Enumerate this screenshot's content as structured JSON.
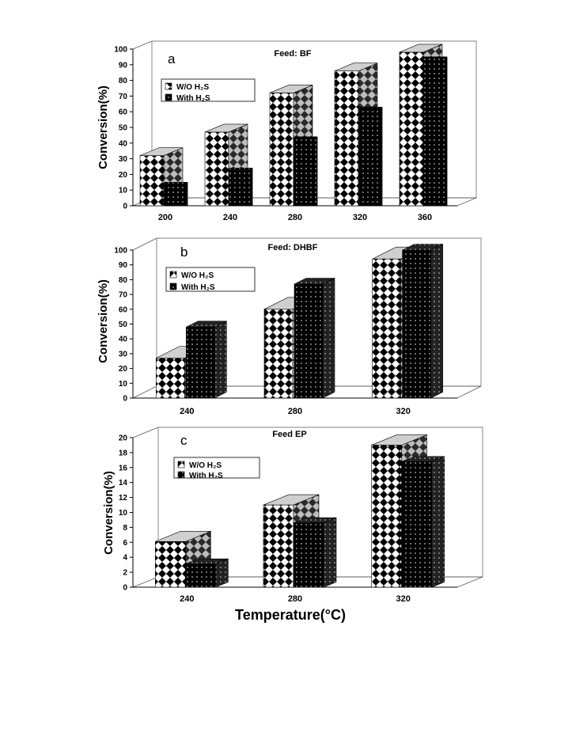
{
  "figure": {
    "x_axis_label": "Temperature(°C)"
  },
  "chart_data": [
    {
      "type": "bar",
      "panel_letter": "a",
      "title": "Feed: BF",
      "ylabel": "Conversion(%)",
      "ylim": [
        0,
        100
      ],
      "yticks": [
        0,
        10,
        20,
        30,
        40,
        50,
        60,
        70,
        80,
        90,
        100
      ],
      "categories": [
        "200",
        "240",
        "280",
        "320",
        "360"
      ],
      "series": [
        {
          "name": "W/O H₂S",
          "values": [
            32,
            47,
            72,
            86,
            98
          ]
        },
        {
          "name": "With H₂S",
          "values": [
            15,
            24,
            44,
            63,
            95
          ]
        }
      ],
      "legend_position": "top-left",
      "grid": false
    },
    {
      "type": "bar",
      "panel_letter": "b",
      "title": "Feed: DHBF",
      "ylabel": "Conversion(%)",
      "ylim": [
        0,
        100
      ],
      "yticks": [
        0,
        10,
        20,
        30,
        40,
        50,
        60,
        70,
        80,
        90,
        100
      ],
      "categories": [
        "240",
        "280",
        "320"
      ],
      "series": [
        {
          "name": "W/O H₂S",
          "values": [
            27,
            60,
            94
          ]
        },
        {
          "name": "With H₂S",
          "values": [
            48,
            77,
            100
          ]
        }
      ],
      "legend_position": "top-left",
      "grid": false
    },
    {
      "type": "bar",
      "panel_letter": "c",
      "title": "Feed EP",
      "ylabel": "Conversion(%)",
      "ylim": [
        0,
        20
      ],
      "yticks": [
        0,
        2,
        4,
        6,
        8,
        10,
        12,
        14,
        16,
        18,
        20
      ],
      "categories": [
        "240",
        "280",
        "320"
      ],
      "series": [
        {
          "name": "W/O H₂S",
          "values": [
            6.1,
            11,
            19
          ]
        },
        {
          "name": "With H₂S",
          "values": [
            3.1,
            8.6,
            16.8
          ]
        }
      ],
      "legend_position": "top-left",
      "grid": false
    }
  ]
}
